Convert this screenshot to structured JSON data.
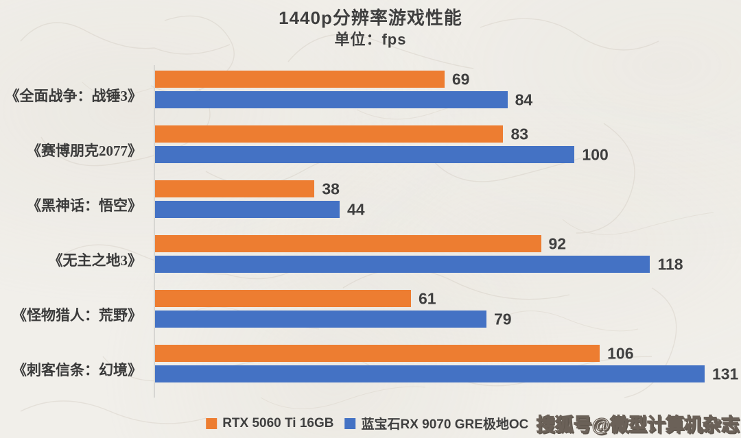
{
  "header": {
    "title": "1440p分辨率游戏性能",
    "subtitle": "单位：fps"
  },
  "watermark": {
    "text": "搜狐号@微型计算机杂志"
  },
  "chart_data": {
    "type": "bar",
    "orientation": "horizontal",
    "title": "1440p分辨率游戏性能",
    "subtitle": "单位：fps",
    "unit": "fps",
    "categories": [
      "《全面战争：战锤3》",
      "《赛博朋克2077》",
      "《黑神话：悟空》",
      "《无主之地3》",
      "《怪物猎人：荒野》",
      "《刺客信条：幻境》"
    ],
    "series": [
      {
        "name": "RTX 5060 Ti 16GB",
        "color": "#ED7D31",
        "values": [
          69,
          83,
          38,
          92,
          61,
          106
        ]
      },
      {
        "name": "蓝宝石RX 9070 GRE极地OC",
        "color": "#4472C4",
        "values": [
          84,
          100,
          44,
          118,
          79,
          131
        ]
      }
    ],
    "xlim": [
      0,
      140
    ],
    "value_labels": true,
    "legend_position": "bottom",
    "grid": false,
    "text_color": "#3f3f3f",
    "background_color": "#f1efea"
  }
}
